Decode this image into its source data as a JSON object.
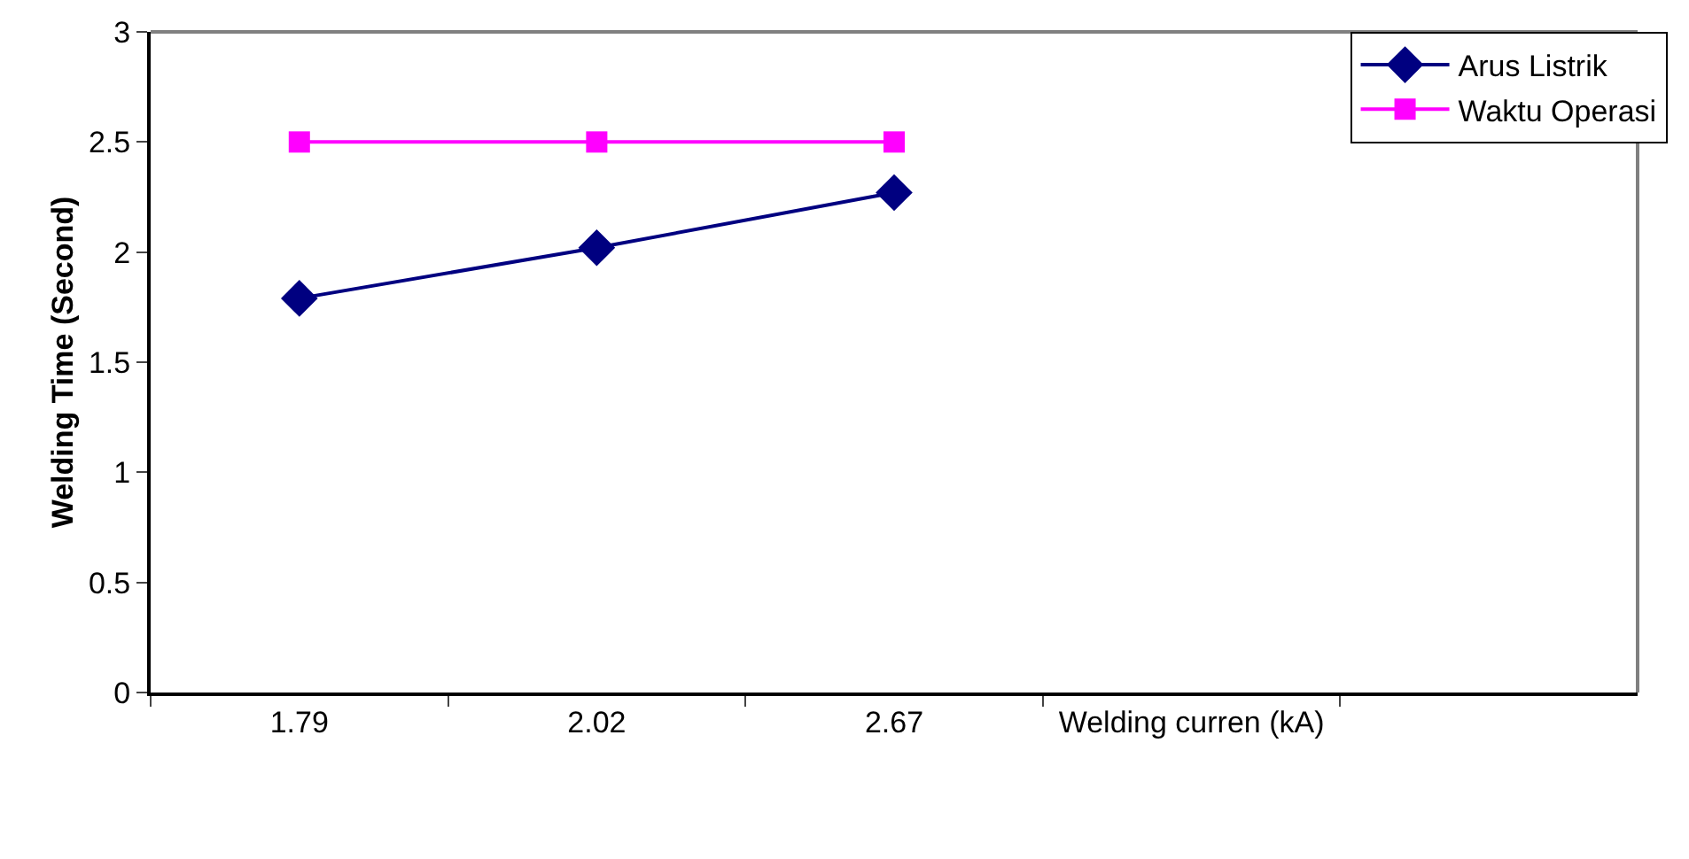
{
  "chart_data": {
    "type": "line",
    "ylabel": "Welding Time (Second)",
    "categories": [
      "1.79",
      "2.02",
      "2.67",
      "Welding curren (kA)",
      null
    ],
    "series": [
      {
        "name": "Arus Listrik",
        "color": "#000080",
        "marker": "diamond",
        "values": [
          1.79,
          2.02,
          2.27,
          null,
          null
        ]
      },
      {
        "name": "Waktu Operasi",
        "color": "#ff00ff",
        "marker": "square",
        "values": [
          2.5,
          2.5,
          2.5,
          null,
          null
        ]
      }
    ],
    "ylim": [
      0,
      3
    ],
    "yticks": [
      0,
      0.5,
      1,
      1.5,
      2,
      2.5,
      3
    ],
    "grid": false,
    "legend": "top right",
    "line_style": "solid"
  }
}
